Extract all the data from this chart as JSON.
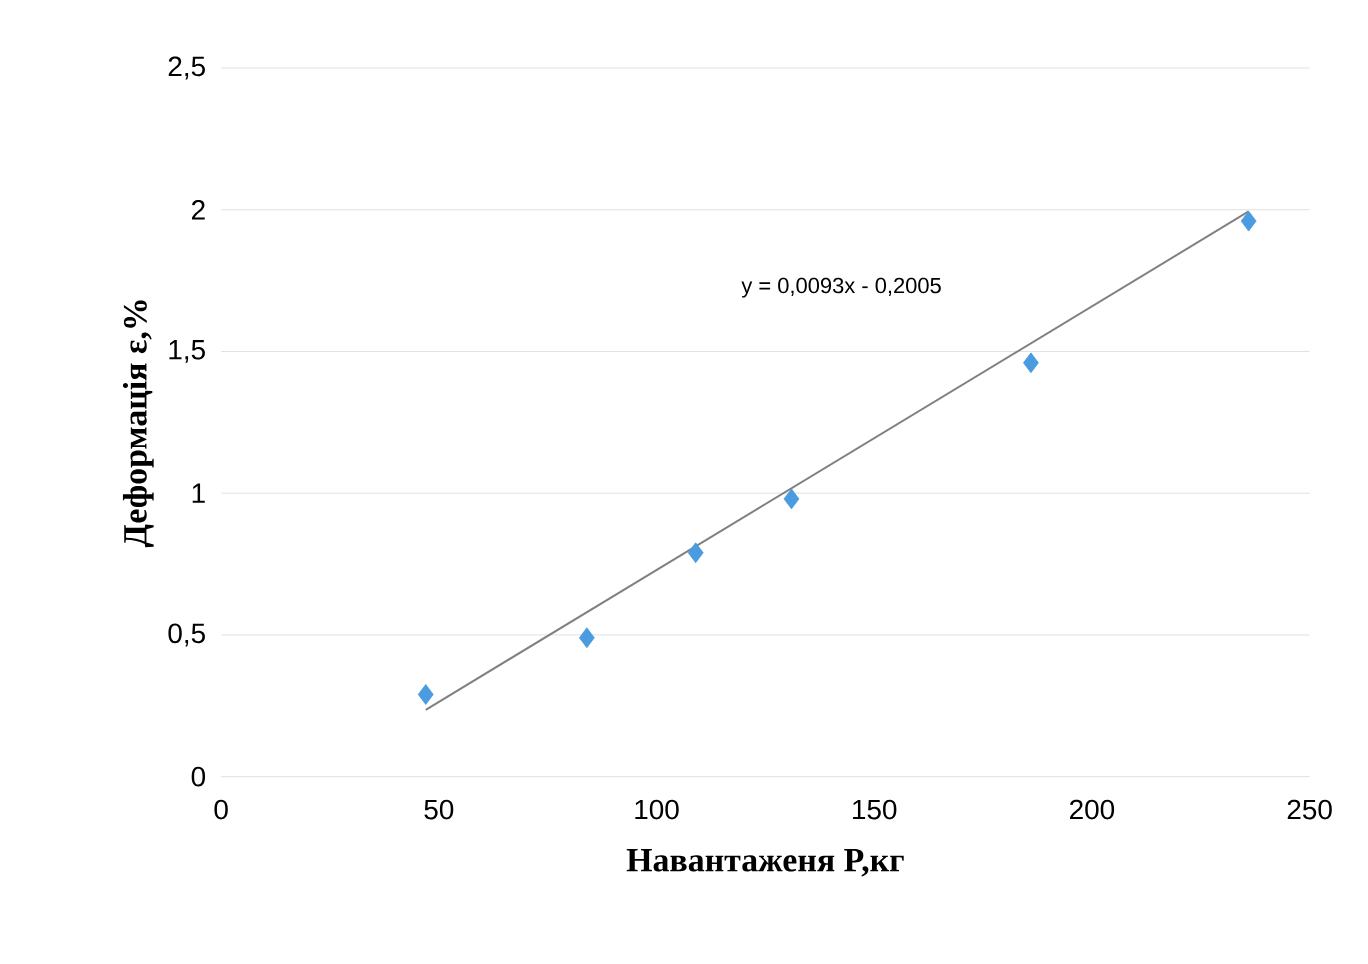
{
  "chart_data": {
    "type": "scatter",
    "xlabel": "Навантаженя P,кг",
    "ylabel": "Деформація ε,%",
    "xlim": [
      0,
      250
    ],
    "ylim": [
      0,
      2.5
    ],
    "xticks": [
      0,
      50,
      100,
      150,
      200,
      250
    ],
    "yticks": [
      0,
      {
        "value": 0.5,
        "label": "0,5"
      },
      1,
      {
        "value": 1.5,
        "label": "1,5"
      },
      2,
      {
        "value": 2.5,
        "label": "2,5"
      }
    ],
    "grid": "y",
    "series": [
      {
        "marker": "diamond",
        "color": "#4a9be0",
        "x": [
          47,
          84,
          109,
          131,
          186,
          236
        ],
        "values": [
          0.29,
          0.49,
          0.79,
          0.98,
          1.46,
          1.96
        ]
      },
      {
        "type": "line",
        "marker": "none",
        "color": "#808080",
        "x": [
          47,
          236
        ],
        "values": [
          0.236,
          1.994
        ]
      }
    ],
    "annotations": [
      "y = 0,0093x - 0,2005"
    ]
  }
}
